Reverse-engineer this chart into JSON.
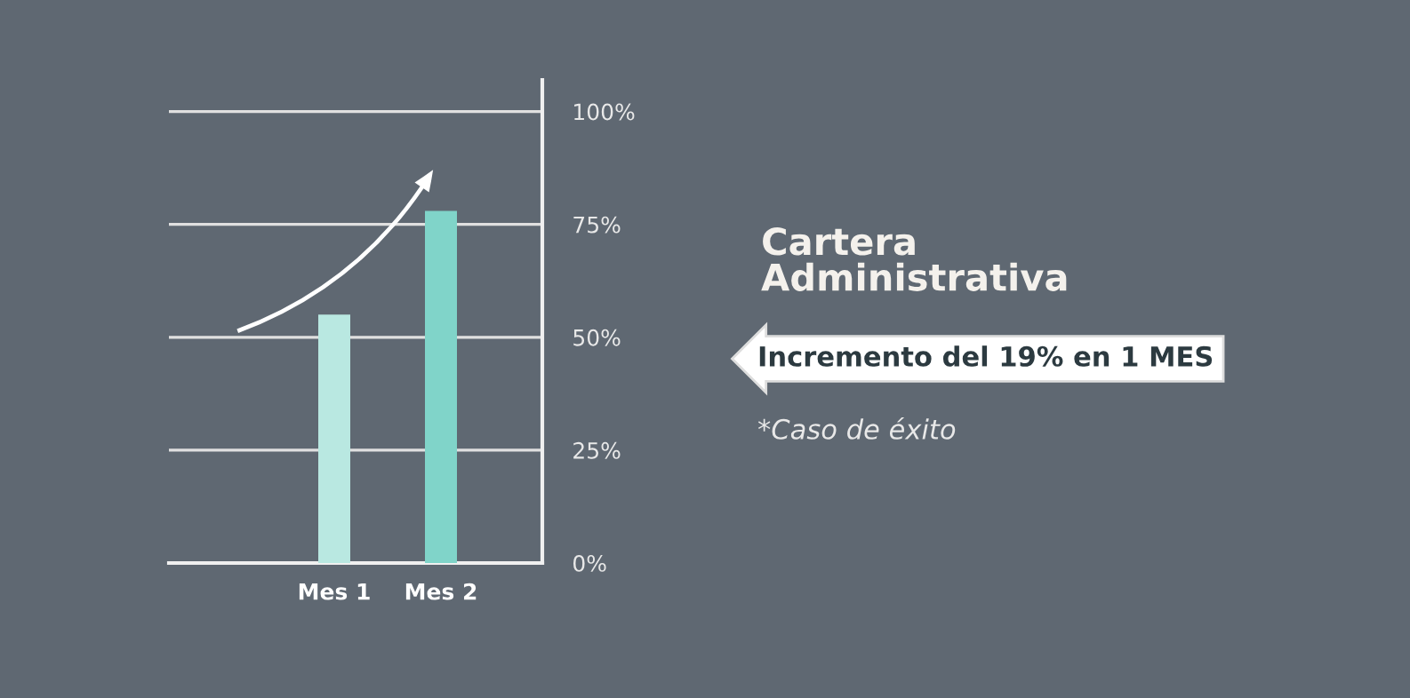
{
  "chart_data": {
    "type": "bar",
    "title": "Cartera Administrativa",
    "categories": [
      "Mes 1",
      "Mes 2"
    ],
    "values": [
      55,
      78
    ],
    "colors": [
      "#b9e8e1",
      "#80d4c9"
    ],
    "ylim": [
      0,
      107
    ],
    "yticks": [
      {
        "value": 0,
        "label": "0%"
      },
      {
        "value": 25,
        "label": "25%"
      },
      {
        "value": 50,
        "label": "50%"
      },
      {
        "value": 75,
        "label": "75%"
      },
      {
        "value": 100,
        "label": "100%"
      }
    ],
    "grid": "y",
    "annotations": [
      "Incremento del 19% en 1 MES",
      "*Caso de éxito"
    ]
  }
}
